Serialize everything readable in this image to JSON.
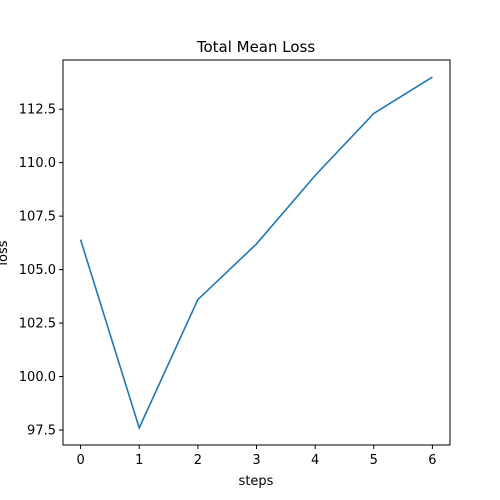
{
  "chart_data": {
    "type": "line",
    "title": "Total Mean Loss",
    "xlabel": "steps",
    "ylabel": "loss",
    "x": [
      0,
      1,
      2,
      3,
      4,
      5,
      6
    ],
    "series": [
      {
        "values": [
          106.4,
          97.6,
          103.6,
          106.2,
          109.4,
          112.3,
          114.0
        ]
      }
    ],
    "xlim": [
      -0.3,
      6.3
    ],
    "ylim": [
      96.8,
      114.8
    ],
    "xticks": [
      0,
      1,
      2,
      3,
      4,
      5,
      6
    ],
    "yticks": [
      97.5,
      100.0,
      102.5,
      105.0,
      107.5,
      110.0,
      112.5
    ],
    "ytick_labels": [
      "97.5",
      "100.0",
      "102.5",
      "105.0",
      "107.5",
      "110.0",
      "112.5"
    ],
    "grid": false,
    "line_color": "#1f77b4"
  }
}
